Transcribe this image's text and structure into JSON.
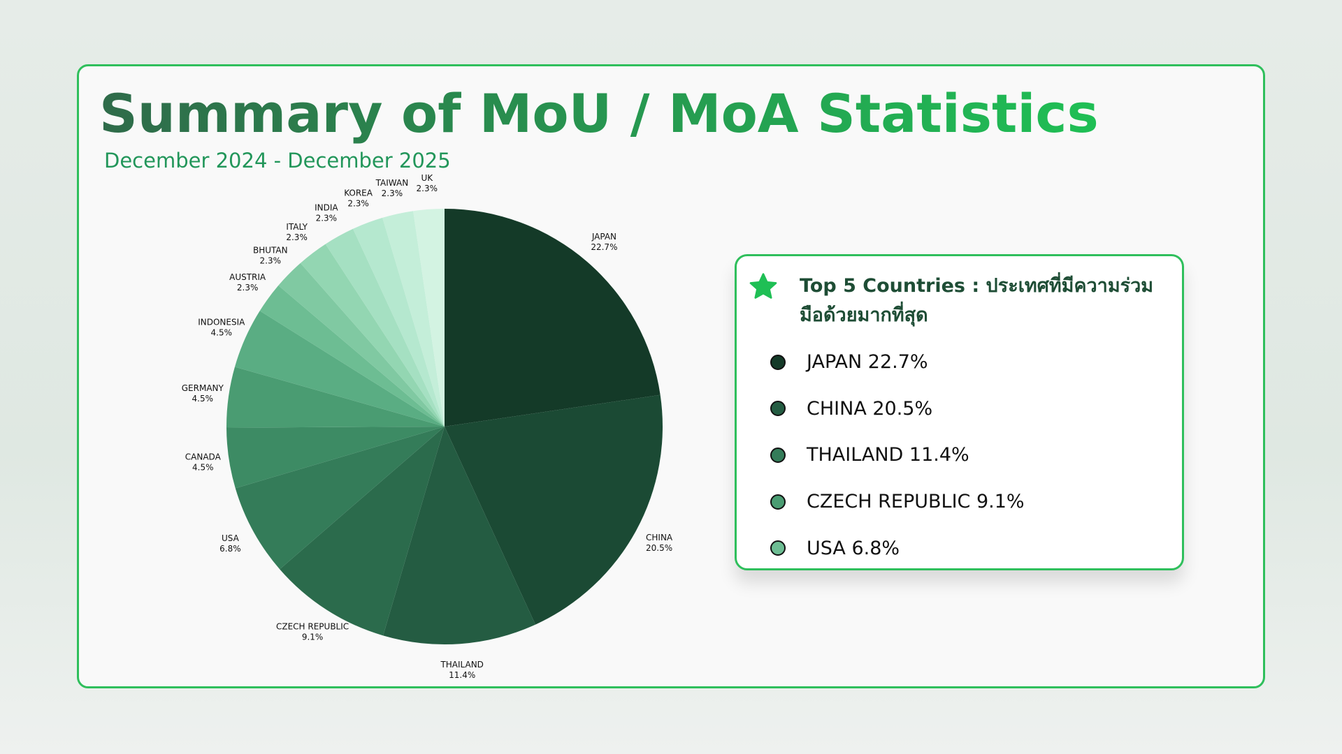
{
  "chart_data": {
    "type": "pie",
    "title": "Summary of MoU / MoA Statistics",
    "subtitle": "December 2024 - December 2025",
    "categories": [
      "JAPAN",
      "CHINA",
      "THAILAND",
      "CZECH REPUBLIC",
      "USA",
      "CANADA",
      "GERMANY",
      "INDONESIA",
      "AUSTRIA",
      "BHUTAN",
      "ITALY",
      "INDIA",
      "KOREA",
      "TAIWAN",
      "UK"
    ],
    "values": [
      22.7,
      20.5,
      11.4,
      9.1,
      6.8,
      4.5,
      4.5,
      4.5,
      2.3,
      2.3,
      2.3,
      2.3,
      2.3,
      2.3,
      2.3
    ],
    "value_labels": [
      "22.7%",
      "20.5%",
      "11.4%",
      "9.1%",
      "6.8%",
      "4.5%",
      "4.5%",
      "4.5%",
      "2.3%",
      "2.3%",
      "2.3%",
      "2.3%",
      "2.3%",
      "2.3%",
      "2.3%"
    ],
    "colors": [
      "#143a28",
      "#1b4a34",
      "#245c42",
      "#2b6b4c",
      "#347c59",
      "#3d8b64",
      "#4a9c72",
      "#5aad83",
      "#6dbd93",
      "#80c9a2",
      "#93d6b2",
      "#a5e0c2",
      "#b5e8cf",
      "#c4eed9",
      "#d3f3e2"
    ]
  },
  "panel": {
    "title": "Top 5 Countries : ประเทศที่มีความร่วมมือด้วยมากที่สุด",
    "items": [
      "JAPAN 22.7%",
      "CHINA 20.5%",
      "THAILAND 11.4%",
      "CZECH REPUBLIC 9.1%",
      "USA 6.8%"
    ]
  }
}
